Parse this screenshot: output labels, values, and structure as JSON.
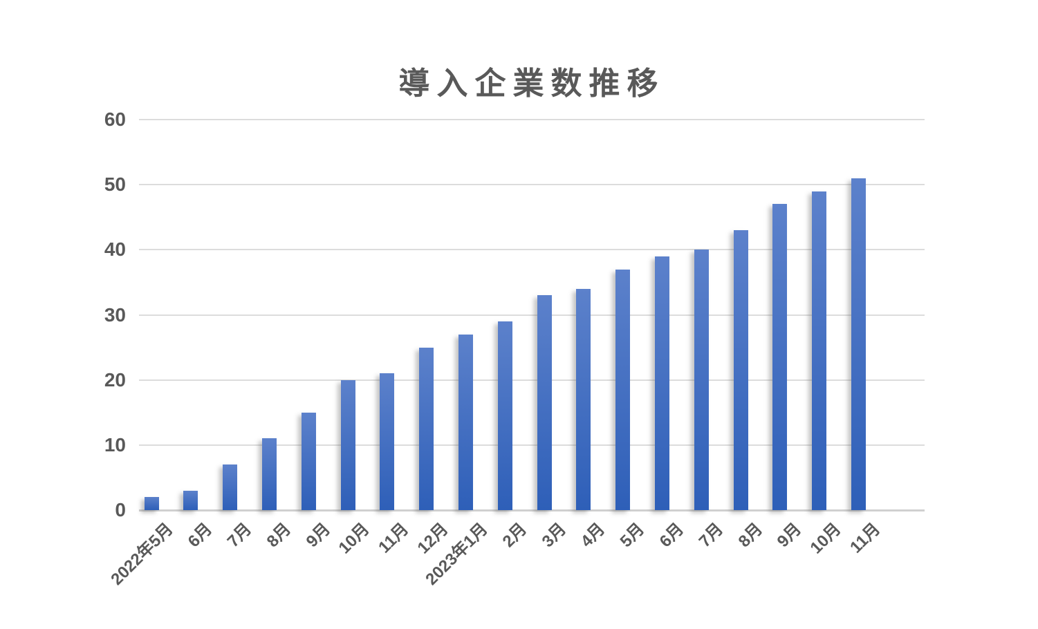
{
  "title": "導入企業数推移",
  "chart_data": {
    "type": "bar",
    "title": "導入企業数推移",
    "categories": [
      "2022年5月",
      "6月",
      "7月",
      "8月",
      "9月",
      "10月",
      "11月",
      "12月",
      "2023年1月",
      "2月",
      "3月",
      "4月",
      "5月",
      "6月",
      "7月",
      "8月",
      "9月",
      "10月",
      "11月"
    ],
    "values": [
      2,
      3,
      7,
      11,
      15,
      20,
      21,
      25,
      27,
      29,
      33,
      34,
      37,
      39,
      40,
      43,
      47,
      49,
      51
    ],
    "xlabel": "",
    "ylabel": "",
    "ylim": [
      0,
      60
    ],
    "yticks": [
      0,
      10,
      20,
      30,
      40,
      50,
      60
    ],
    "grid": true,
    "legend": false,
    "x_label_rotation_deg": 45
  },
  "colors": {
    "background": "#FFFFFF",
    "title_text": "#595959",
    "axis_text": "#595959",
    "gridline": "#DCDCDC",
    "axis_line": "#D0D0D0",
    "bar_gradient_top": "#5C81CB",
    "bar_gradient_bottom": "#2E5FB8"
  }
}
